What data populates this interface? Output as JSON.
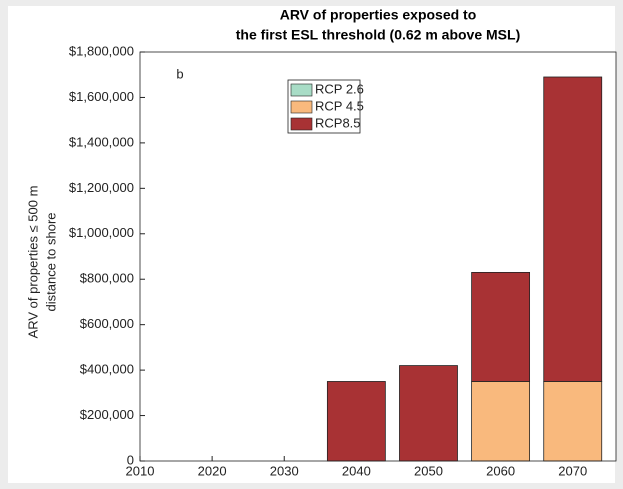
{
  "chart_data": {
    "type": "bar",
    "stacked": true,
    "title": [
      "ARV of properties exposed to",
      "the first ESL threshold (0.62 m above MSL)"
    ],
    "ylabel": [
      "ARV of properties ≤ 500 m",
      "distance to shore"
    ],
    "annotation": "b",
    "x": [
      2040,
      2050,
      2060,
      2070
    ],
    "series": [
      {
        "name": "RCP 2.6",
        "color": "#a8dcc6",
        "values": [
          0,
          0,
          0,
          0
        ]
      },
      {
        "name": "RCP 4.5",
        "color": "#f9b97d",
        "values": [
          0,
          0,
          350000,
          350000
        ]
      },
      {
        "name": "RCP8.5",
        "color": "#a83234",
        "values": [
          350000,
          420000,
          480000,
          1340000
        ]
      }
    ],
    "xlim": [
      2010,
      2076
    ],
    "xticks": [
      2010,
      2020,
      2030,
      2040,
      2050,
      2060,
      2070
    ],
    "ylim": [
      0,
      1800000
    ],
    "yticks": [
      0,
      {
        "value": 200000,
        "label": "$200,000"
      },
      {
        "value": 400000,
        "label": "$400,000"
      },
      {
        "value": 600000,
        "label": "$600,000"
      },
      {
        "value": 800000,
        "label": "$800,000"
      },
      {
        "value": 1000000,
        "label": "$1,000,000"
      },
      {
        "value": 1200000,
        "label": "$1,200,000"
      },
      {
        "value": 1400000,
        "label": "$1,400,000"
      },
      {
        "value": 1600000,
        "label": "$1,600,000"
      },
      {
        "value": 1800000,
        "label": "$1,800,000"
      }
    ],
    "legend": "top-center"
  }
}
